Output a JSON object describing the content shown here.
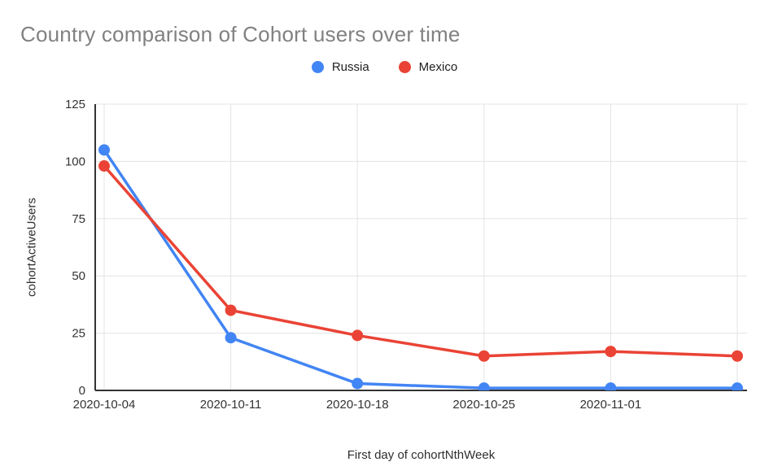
{
  "chart": {
    "title": "Country comparison of Cohort users over time",
    "x_axis_title": "First day of cohortNthWeek",
    "y_axis_title": "cohortActiveUsers",
    "legend": [
      {
        "label": "Russia",
        "color": "#4285F4"
      },
      {
        "label": "Mexico",
        "color": "#EA4335"
      }
    ],
    "colors": {
      "title_text": "#818181",
      "axis_line": "#333333",
      "gridline": "#e3e3e3",
      "tick_text": "#333333",
      "russia": "#4285F4",
      "mexico": "#EA4335"
    }
  },
  "chart_data": {
    "type": "line",
    "title": "Country comparison of Cohort users over time",
    "xlabel": "First day of cohortNthWeek",
    "ylabel": "cohortActiveUsers",
    "categories": [
      "2020-10-04",
      "2020-10-11",
      "2020-10-18",
      "2020-10-25",
      "2020-11-01",
      ""
    ],
    "x_tick_labels": [
      "2020-10-04",
      "2020-10-11",
      "2020-10-18",
      "2020-10-25",
      "2020-11-01",
      ""
    ],
    "series": [
      {
        "name": "Russia",
        "color": "#4285F4",
        "values": [
          105,
          23,
          3,
          1,
          1,
          1
        ]
      },
      {
        "name": "Mexico",
        "color": "#EA4335",
        "values": [
          98,
          35,
          24,
          15,
          17,
          15
        ]
      }
    ],
    "y_ticks": [
      0,
      25,
      50,
      75,
      100,
      125
    ],
    "ylim": [
      0,
      125
    ],
    "grid": true,
    "legend_position": "top",
    "point_radius": 7,
    "line_width": 3.5
  }
}
